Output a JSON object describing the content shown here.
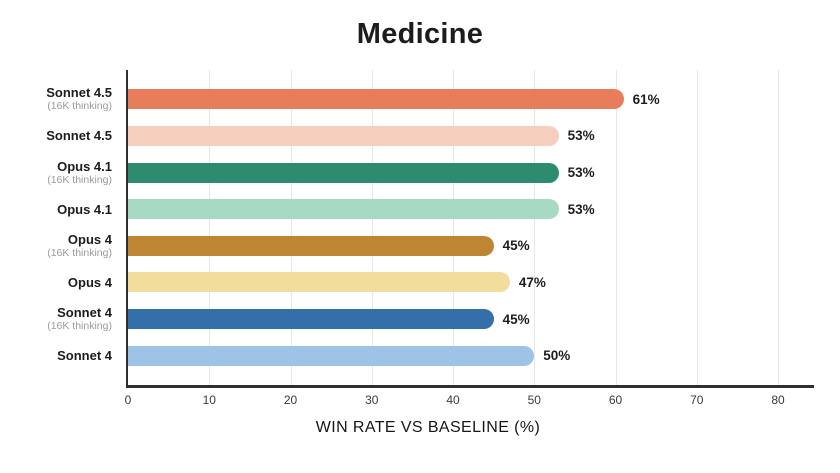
{
  "title": "Medicine",
  "xlabel": "WIN RATE VS BASELINE (%)",
  "colors": {
    "axis": "#2F2F2F",
    "gridline": "#E7E7E7",
    "title_text": "#1C1C1C",
    "value_text": "#1D1D1D",
    "sublabel_text": "#9A9A9A",
    "background": "#FFFFFF"
  },
  "chart_data": {
    "type": "bar",
    "orientation": "horizontal",
    "title": "Medicine",
    "xlabel": "WIN RATE VS BASELINE (%)",
    "ylabel": "",
    "xlim": [
      0,
      80
    ],
    "xticks": [
      0,
      10,
      20,
      30,
      40,
      50,
      60,
      70,
      80
    ],
    "grid": "vertical-only",
    "legend": "none",
    "rows": [
      {
        "label": "Sonnet 4.5",
        "sublabel": "(16K thinking)",
        "value": 61,
        "value_label": "61%",
        "color": "#E87D5B"
      },
      {
        "label": "Sonnet 4.5",
        "sublabel": "",
        "value": 53,
        "value_label": "53%",
        "color": "#F7CFBE"
      },
      {
        "label": "Opus 4.1",
        "sublabel": "(16K thinking)",
        "value": 53,
        "value_label": "53%",
        "color": "#2D8C6F"
      },
      {
        "label": "Opus 4.1",
        "sublabel": "",
        "value": 53,
        "value_label": "53%",
        "color": "#A7DAC4"
      },
      {
        "label": "Opus 4",
        "sublabel": "(16K thinking)",
        "value": 45,
        "value_label": "45%",
        "color": "#BE8632"
      },
      {
        "label": "Opus 4",
        "sublabel": "",
        "value": 47,
        "value_label": "47%",
        "color": "#F3DD9D"
      },
      {
        "label": "Sonnet 4",
        "sublabel": "(16K thinking)",
        "value": 45,
        "value_label": "45%",
        "color": "#336FA9"
      },
      {
        "label": "Sonnet 4",
        "sublabel": "",
        "value": 50,
        "value_label": "50%",
        "color": "#9DC3E7"
      }
    ]
  }
}
